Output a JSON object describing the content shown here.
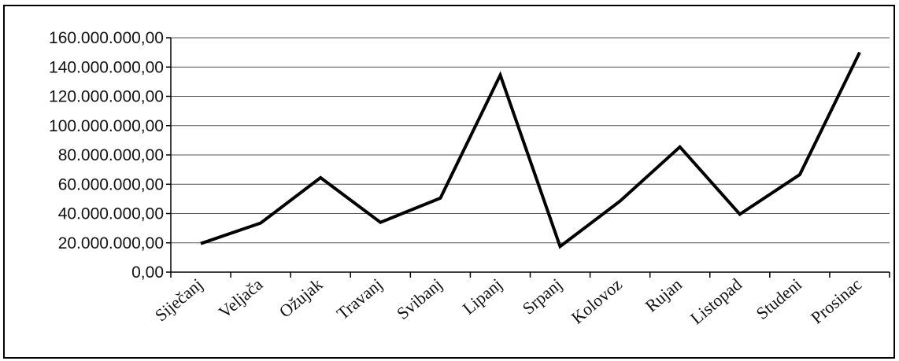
{
  "chart_data": {
    "type": "line",
    "title": "",
    "xlabel": "",
    "ylabel": "",
    "categories": [
      "Siječanj",
      "Veljača",
      "Ožujak",
      "Travanj",
      "Svibanj",
      "Lipanj",
      "Srpanj",
      "Kolovoz",
      "Rujan",
      "Listopad",
      "Studeni",
      "Prosinac"
    ],
    "series": [
      {
        "values": [
          19500000,
          33500000,
          64500000,
          34000000,
          50500000,
          134500000,
          17500000,
          48500000,
          85500000,
          39500000,
          66500000,
          150000000
        ],
        "color": "#000000"
      }
    ],
    "ylim": [
      0,
      160000000
    ],
    "yticks": [
      0,
      20000000,
      40000000,
      60000000,
      80000000,
      100000000,
      120000000,
      140000000,
      160000000
    ],
    "ytick_labels": [
      "0,00",
      "20.000.000,00",
      "40.000.000,00",
      "60.000.000,00",
      "80.000.000,00",
      "100.000.000,00",
      "120.000.000,00",
      "140.000.000,00",
      "160.000.000,00"
    ],
    "grid": true,
    "legend": "none"
  }
}
